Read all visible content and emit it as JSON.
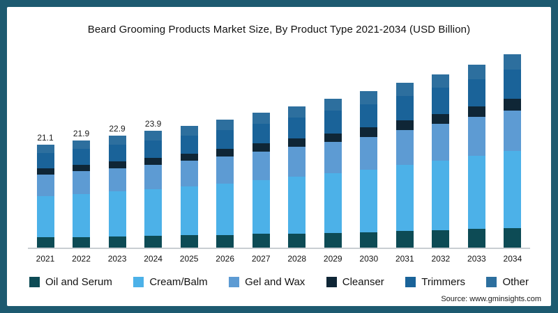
{
  "title": "Beard Grooming Products Market Size, By Product Type 2021-2034 (USD Billion)",
  "source": "Source: www.gminsights.com",
  "colors": {
    "frame_background": "#1d5a70",
    "card_background": "#ffffff",
    "axis_line": "#c9ced2"
  },
  "chart_data": {
    "type": "bar",
    "stacked": true,
    "title": "Beard Grooming Products Market Size, By Product Type 2021-2034 (USD Billion)",
    "xlabel": "",
    "ylabel": "",
    "ylim": [
      0,
      42
    ],
    "grid": false,
    "legend_position": "bottom",
    "categories": [
      "2021",
      "2022",
      "2023",
      "2024",
      "2025",
      "2026",
      "2027",
      "2028",
      "2029",
      "2030",
      "2031",
      "2032",
      "2033",
      "2034"
    ],
    "data_labels": [
      "21.1",
      "21.9",
      "22.9",
      "23.9",
      "",
      "",
      "",
      "",
      "",
      "",
      "",
      "",
      "",
      ""
    ],
    "totals": [
      21.1,
      21.9,
      22.9,
      23.9,
      25.0,
      26.2,
      27.5,
      28.9,
      30.4,
      32.0,
      33.7,
      35.5,
      37.5,
      39.6
    ],
    "series": [
      {
        "name": "Oil and Serum",
        "color": "#0d4b55",
        "values": [
          2.1,
          2.2,
          2.3,
          2.4,
          2.5,
          2.6,
          2.8,
          2.9,
          3.0,
          3.2,
          3.4,
          3.6,
          3.8,
          4.0
        ]
      },
      {
        "name": "Cream/Balm",
        "color": "#4cb1e8",
        "values": [
          8.4,
          8.8,
          9.2,
          9.6,
          10.0,
          10.5,
          11.0,
          11.6,
          12.2,
          12.8,
          13.5,
          14.2,
          15.0,
          15.8
        ]
      },
      {
        "name": "Gel and Wax",
        "color": "#5d9bd3",
        "values": [
          4.4,
          4.6,
          4.8,
          5.0,
          5.3,
          5.5,
          5.8,
          6.1,
          6.4,
          6.7,
          7.1,
          7.5,
          7.9,
          8.3
        ]
      },
      {
        "name": "Cleanser",
        "color": "#0f2636",
        "values": [
          1.3,
          1.3,
          1.4,
          1.4,
          1.5,
          1.6,
          1.7,
          1.7,
          1.8,
          1.9,
          2.0,
          2.1,
          2.2,
          2.4
        ]
      },
      {
        "name": "Trimmers",
        "color": "#1a6399",
        "values": [
          3.2,
          3.3,
          3.4,
          3.6,
          3.7,
          3.9,
          4.1,
          4.3,
          4.6,
          4.8,
          5.1,
          5.3,
          5.6,
          5.9
        ]
      },
      {
        "name": "Other",
        "color": "#2d6f9e",
        "values": [
          1.7,
          1.8,
          1.8,
          1.9,
          2.0,
          2.1,
          2.2,
          2.3,
          2.4,
          2.6,
          2.7,
          2.8,
          3.0,
          3.2
        ]
      }
    ]
  }
}
